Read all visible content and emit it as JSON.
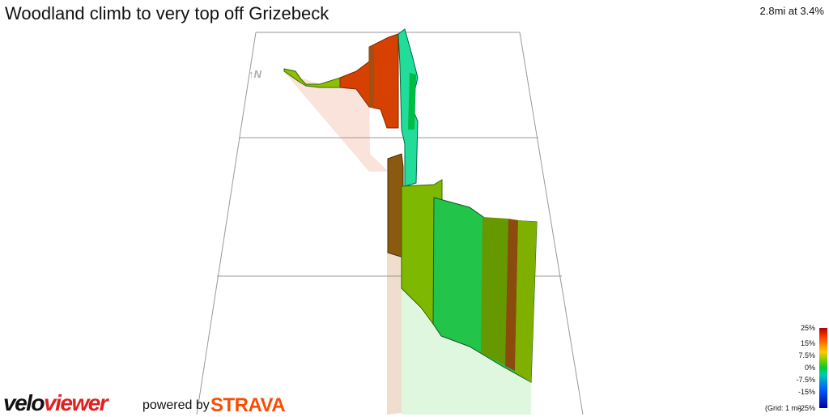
{
  "chart_data": {
    "type": "3d-elevation-profile",
    "title": "Woodland climb to very top off Grizebeck",
    "summary": "2.8mi at 3.4%",
    "legend": {
      "title": "",
      "ticks": [
        "25%",
        "15%",
        "7.5%",
        "0%",
        "-7.5%",
        "-15%",
        "-25%"
      ],
      "placement": "bottom-right"
    },
    "grid_note": "(Grid: 1 mi)",
    "north_label": "N",
    "colors": {
      "steep": "#cc3300",
      "brown": "#8a4b0c",
      "olive": "#669900",
      "green": "#00cc33",
      "teal": "#00ccaa",
      "grid": "#999999"
    }
  },
  "branding": {
    "logo_black": "velo",
    "logo_red": "viewer",
    "powered_by": "powered by",
    "strava": "STRAVA"
  }
}
